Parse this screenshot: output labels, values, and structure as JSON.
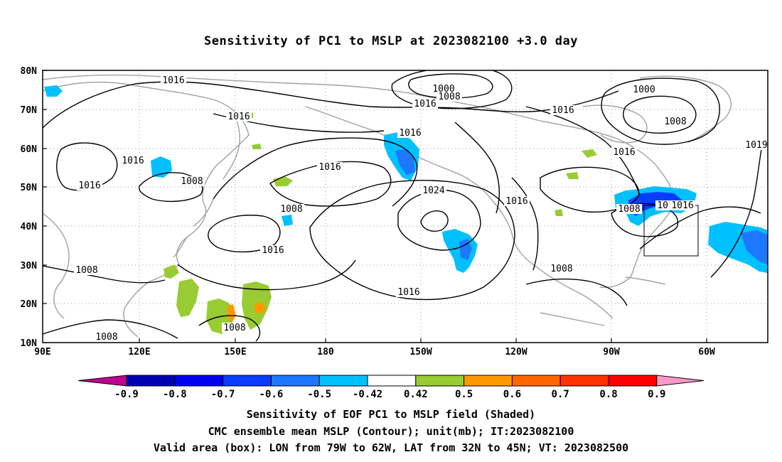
{
  "title": "Sensitivity of PC1 to MSLP at 2023082100 +3.0 day",
  "lat_labels": [
    "80N",
    "70N",
    "60N",
    "50N",
    "40N",
    "30N",
    "20N",
    "10N"
  ],
  "lon_labels": [
    "90E",
    "120E",
    "150E",
    "180",
    "150W",
    "120W",
    "90W",
    "60W"
  ],
  "contour_labels": [
    "1016",
    "1016",
    "1016",
    "1008",
    "1016",
    "1008",
    "1016",
    "1008",
    "1016",
    "1008",
    "1008",
    "1000",
    "1008",
    "1016",
    "1016",
    "1024",
    "1016",
    "1016",
    "1016",
    "1008",
    "1016",
    "1008",
    "1000",
    "1008",
    "1016",
    "1008",
    "1016",
    "1019"
  ],
  "colorbar": {
    "colors": [
      "#c00090",
      "#0000b0",
      "#0000ee",
      "#0a3cff",
      "#1e78ff",
      "#00c0ff",
      "#ffffff",
      "#99cc33",
      "#ff9900",
      "#ff6600",
      "#ff3300",
      "#ff0000",
      "#ff99cc"
    ],
    "ticks": [
      "-0.9",
      "-0.8",
      "-0.7",
      "-0.6",
      "-0.5",
      "-0.42",
      "0.42",
      "0.5",
      "0.6",
      "0.7",
      "0.8",
      "0.9"
    ]
  },
  "captions": {
    "line1": "Sensitivity of EOF PC1 to MSLP field (Shaded)",
    "line2": "CMC ensemble mean MSLP (Contour); unit(mb); IT:2023082100",
    "line3": "Valid area (box): LON from 79W to 62W, LAT from 32N to 45N; VT: 2023082500"
  },
  "colors": {
    "coast": "#a0a0a0",
    "contour": "#000000",
    "grid": "#999999",
    "shade_positive": "#99cc33",
    "shade_negative": "#00c0ff"
  }
}
